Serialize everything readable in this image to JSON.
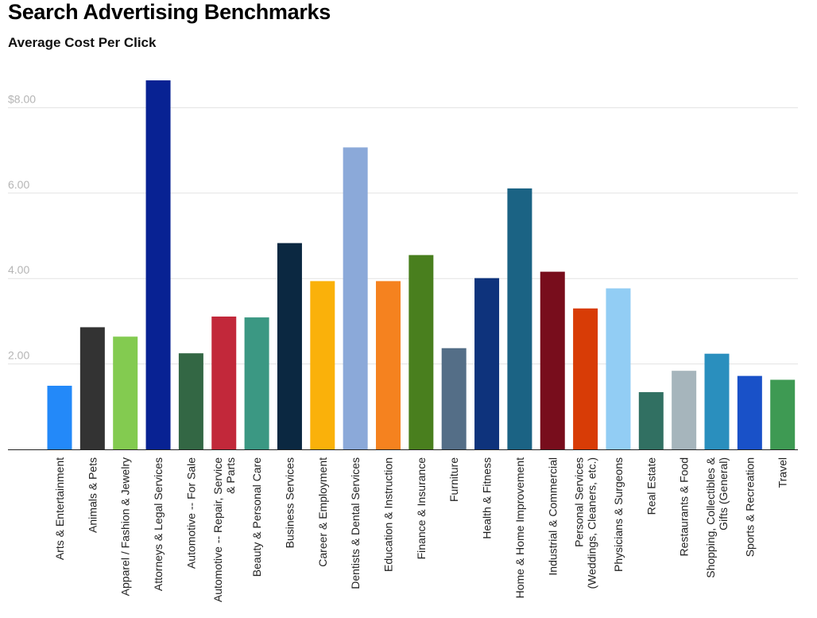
{
  "title": "Search Advertising Benchmarks",
  "subtitle": "Average Cost Per Click",
  "chart_data": {
    "type": "bar",
    "title": "Search Advertising Benchmarks",
    "subtitle": "Average Cost Per Click",
    "ylim": [
      0,
      8.6
    ],
    "grid": true,
    "legend": "none",
    "yticks": [
      {
        "value": 2,
        "label": "2.00"
      },
      {
        "value": 4,
        "label": "4.00"
      },
      {
        "value": 6,
        "label": "6.00"
      },
      {
        "value": 8,
        "label": "$8.00"
      }
    ],
    "categories": [
      [
        "Arts & Entertainment"
      ],
      [
        "Animals & Pets"
      ],
      [
        "Apparel / Fashion & Jewelry"
      ],
      [
        "Attorneys & Legal Services"
      ],
      [
        "Automotive -- For Sale"
      ],
      [
        "Automotive -- Repair, Service",
        "& Parts"
      ],
      [
        "Beauty & Personal Care"
      ],
      [
        "Business Services"
      ],
      [
        "Career & Employment"
      ],
      [
        "Dentists & Dental Services"
      ],
      [
        "Education & Instruction"
      ],
      [
        "Finance & Insurance"
      ],
      [
        "Furniture"
      ],
      [
        "Health & Fitness"
      ],
      [
        "Home & Home Improvement"
      ],
      [
        "Industrial & Commercial"
      ],
      [
        "Personal Services",
        "(Weddings, Cleaners, etc.)"
      ],
      [
        "Physicians & Surgeons"
      ],
      [
        "Real Estate"
      ],
      [
        "Restaurants & Food"
      ],
      [
        "Shopping, Collectibles &",
        "Gifts (General)"
      ],
      [
        "Sports & Recreation"
      ],
      [
        "Travel"
      ]
    ],
    "values": [
      1.49,
      2.86,
      2.64,
      8.64,
      2.25,
      3.11,
      3.09,
      4.83,
      3.94,
      7.07,
      3.94,
      4.55,
      2.37,
      4.01,
      6.11,
      4.16,
      3.3,
      3.77,
      1.34,
      1.84,
      2.24,
      1.72,
      1.63
    ],
    "colors": [
      "#2389f9",
      "#333333",
      "#83cb50",
      "#082293",
      "#336744",
      "#c2283a",
      "#3b9883",
      "#0b2841",
      "#fab10a",
      "#8ba9d9",
      "#f5821f",
      "#497f1e",
      "#546e87",
      "#0e337c",
      "#1b6384",
      "#780d1c",
      "#d83c06",
      "#92cdf4",
      "#317062",
      "#a6b5bc",
      "#2a8fbe",
      "#1951c8",
      "#3e9a53"
    ]
  }
}
